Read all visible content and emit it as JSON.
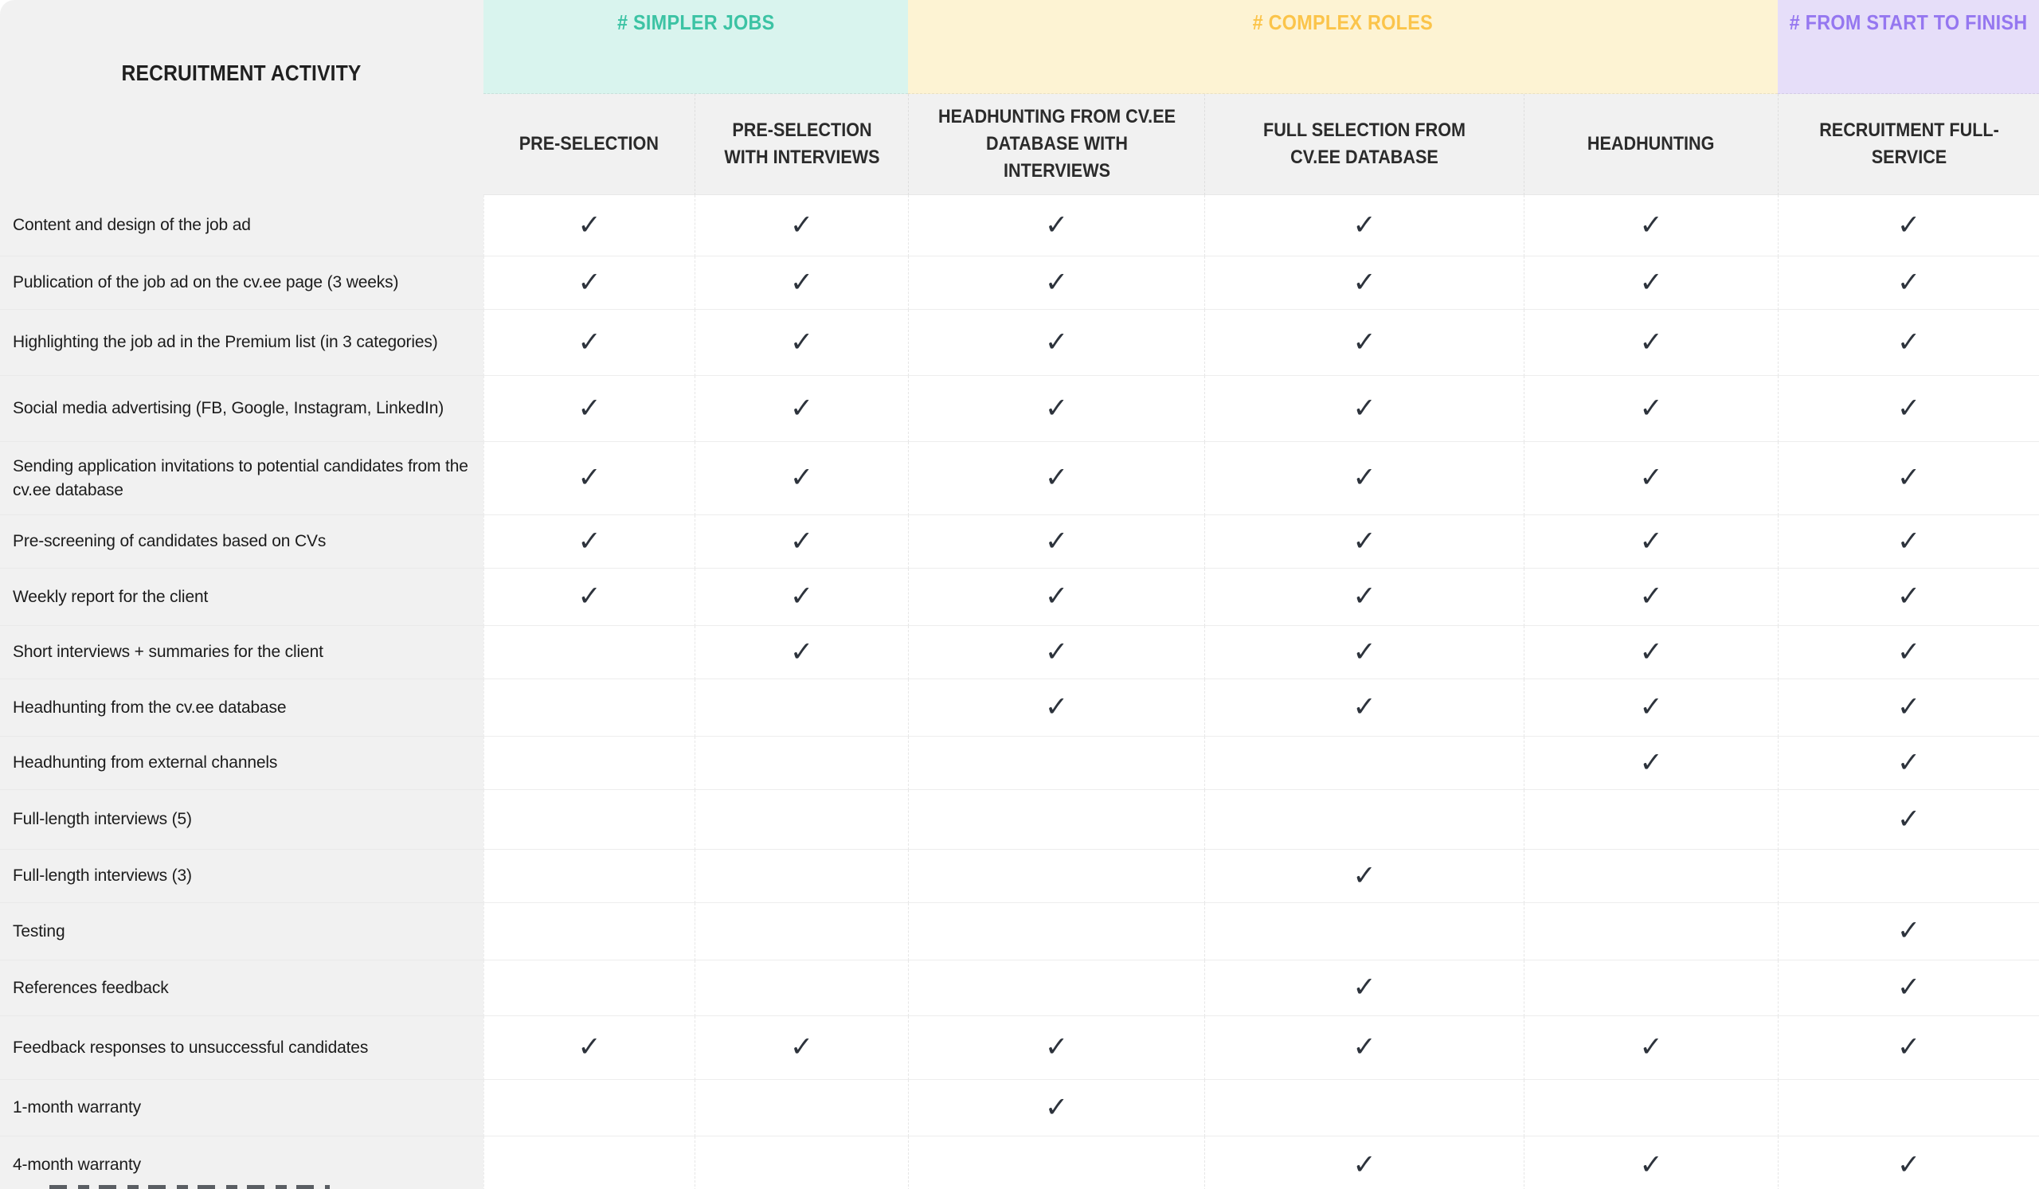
{
  "page": {
    "background": "#ffffff"
  },
  "table": {
    "activity_header": "RECRUITMENT ACTIVITY",
    "check_glyph": "✓",
    "bands": [
      {
        "label": "# SIMPLER JOBS",
        "bg": "#d9f4ee",
        "color": "#3cc3a4"
      },
      {
        "label": "# COMPLEX ROLES",
        "bg": "#fdf3d3",
        "color": "#fbc44a"
      },
      {
        "label": "# FROM START TO FINISH",
        "bg": "#e6def9",
        "color": "#9577f0"
      }
    ],
    "columns": [
      "PRE-SELECTION",
      "PRE-SELECTION WITH INTERVIEWS",
      "HEADHUNTING FROM CV.EE DATABASE WITH INTERVIEWS",
      "FULL SELECTION FROM CV.EE DATABASE",
      "HEADHUNTING",
      "RECRUITMENT FULL-SERVICE"
    ],
    "rows": [
      {
        "label": "Content and design of the job ad",
        "checks": [
          1,
          1,
          1,
          1,
          1,
          1
        ]
      },
      {
        "label": "Publication of the job ad on the cv.ee page (3 weeks)",
        "checks": [
          1,
          1,
          1,
          1,
          1,
          1
        ]
      },
      {
        "label": "Highlighting the job ad in the Premium list (in 3 categories)",
        "checks": [
          1,
          1,
          1,
          1,
          1,
          1
        ]
      },
      {
        "label": "Social media advertising (FB, Google, Instagram, LinkedIn)",
        "checks": [
          1,
          1,
          1,
          1,
          1,
          1
        ]
      },
      {
        "label": "Sending application invitations to potential candidates from the cv.ee database",
        "checks": [
          1,
          1,
          1,
          1,
          1,
          1
        ]
      },
      {
        "label": "Pre-screening of candidates based on CVs",
        "checks": [
          1,
          1,
          1,
          1,
          1,
          1
        ]
      },
      {
        "label": "Weekly report for the client",
        "checks": [
          1,
          1,
          1,
          1,
          1,
          1
        ]
      },
      {
        "label": "Short interviews + summaries for the client",
        "checks": [
          0,
          1,
          1,
          1,
          1,
          1
        ]
      },
      {
        "label": "Headhunting from the cv.ee database",
        "checks": [
          0,
          0,
          1,
          1,
          1,
          1
        ]
      },
      {
        "label": "Headhunting from external channels",
        "checks": [
          0,
          0,
          0,
          0,
          1,
          1
        ]
      },
      {
        "label": "Full-length interviews (5)",
        "checks": [
          0,
          0,
          0,
          0,
          0,
          1
        ]
      },
      {
        "label": "Full-length interviews (3)",
        "checks": [
          0,
          0,
          0,
          1,
          0,
          0
        ]
      },
      {
        "label": "Testing",
        "checks": [
          0,
          0,
          0,
          0,
          0,
          1
        ]
      },
      {
        "label": "References feedback",
        "checks": [
          0,
          0,
          0,
          1,
          0,
          1
        ]
      },
      {
        "label": "Feedback responses to unsuccessful candidates",
        "checks": [
          1,
          1,
          1,
          1,
          1,
          1
        ]
      },
      {
        "label": "1-month warranty",
        "checks": [
          0,
          0,
          1,
          0,
          0,
          0
        ]
      },
      {
        "label": "4-month warranty",
        "checks": [
          0,
          0,
          0,
          1,
          1,
          1
        ]
      }
    ]
  },
  "colors": {
    "header_bg": "#f1f1f1",
    "check": "#2d333c",
    "row_border": "#ededed",
    "label_text": "#1c1c1c",
    "header_text": "#2b2b2b"
  }
}
